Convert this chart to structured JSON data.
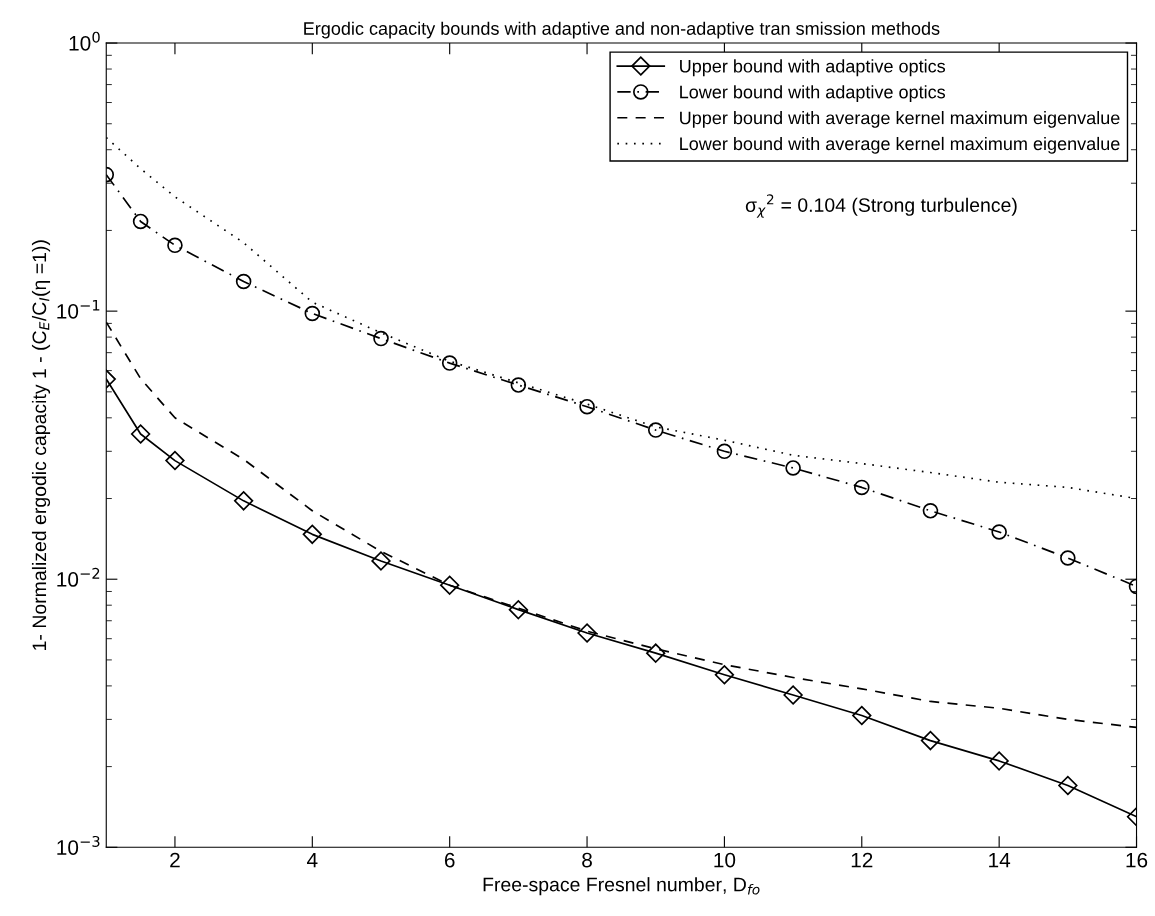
{
  "chart_data": {
    "type": "line",
    "title": "Ergodic capacity bounds with adaptive and non-adaptive tran smission methods",
    "xlabel": "Free-space Fresnel number, D$_{fo}$",
    "ylabel": "1- Normalized ergodic capacity 1 - (C$_{E}$/C$_{I}$(η =1))",
    "x": [
      1,
      1.5,
      2,
      3,
      4,
      5,
      6,
      7,
      8,
      9,
      10,
      11,
      12,
      13,
      14,
      15,
      16
    ],
    "series": [
      {
        "name": "Upper bound with adaptive optics",
        "color": "#000000",
        "marker": "diamond",
        "line_style": "solid",
        "values": [
          0.0558,
          0.0348,
          0.0277,
          0.0196,
          0.0147,
          0.0117,
          0.0095,
          0.0077,
          0.0063,
          0.0053,
          0.0044,
          0.0037,
          0.0031,
          0.0025,
          0.0021,
          0.0017,
          0.0013
        ]
      },
      {
        "name": "Lower bound with adaptive optics",
        "color": "#000000",
        "marker": "circle",
        "line_style": "dashdot",
        "values": [
          0.323,
          0.216,
          0.176,
          0.129,
          0.098,
          0.079,
          0.064,
          0.053,
          0.044,
          0.036,
          0.03,
          0.026,
          0.022,
          0.018,
          0.015,
          0.012,
          0.0094
        ]
      },
      {
        "name": "Upper bound with average kernel maximum eigenvalue",
        "color": "#000000",
        "marker": "none",
        "line_style": "dashed",
        "values": [
          0.091,
          0.056,
          0.04,
          0.028,
          0.018,
          0.0127,
          0.0095,
          0.0078,
          0.0064,
          0.0055,
          0.0048,
          0.0043,
          0.0039,
          0.0035,
          0.0033,
          0.003,
          0.0028
        ]
      },
      {
        "name": "Lower bound with average kernel maximum eigenvalue",
        "color": "#000000",
        "marker": "none",
        "line_style": "dotted",
        "values": [
          0.444,
          0.34,
          0.267,
          0.18,
          0.108,
          0.083,
          0.065,
          0.054,
          0.045,
          0.037,
          0.033,
          0.029,
          0.027,
          0.025,
          0.023,
          0.022,
          0.02
        ]
      }
    ],
    "log": "y",
    "xlim": [
      1,
      16
    ],
    "xticks": [
      2,
      4,
      6,
      8,
      10,
      12,
      14,
      16
    ],
    "ylim": [
      0.001,
      1
    ],
    "yticks": [
      {
        "value": 0.001,
        "label": "10$^{−3}$"
      },
      {
        "value": 0.01,
        "label": "10$^{−2}$"
      },
      {
        "value": 0.1,
        "label": "10$^{−1}$"
      },
      {
        "value": 1,
        "label": "10$^{0}$"
      }
    ],
    "annotations": [
      "σ$_{χ}$$^{2}$ = 0.104 (Strong turbulence)"
    ],
    "legend": "top right",
    "grid": false
  }
}
